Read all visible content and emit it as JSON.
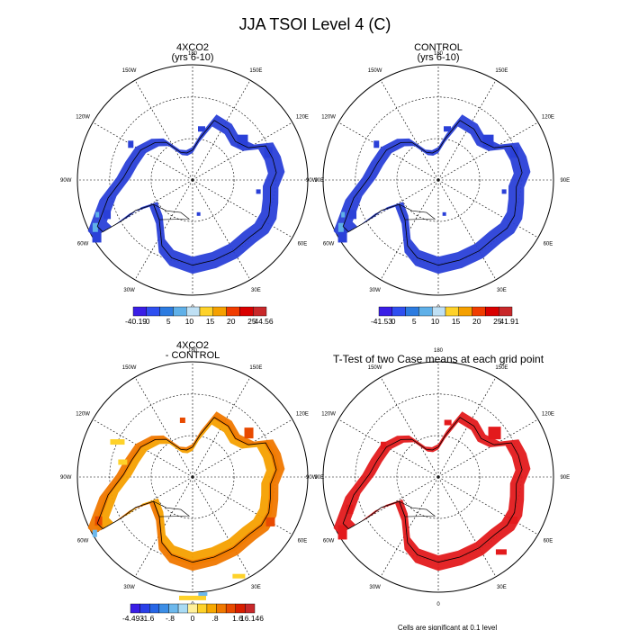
{
  "figure_title": "JJA TSOI Level 4 (C)",
  "colors": {
    "blue_field": "#3a1ee6",
    "ring_blue": "#2a40d8",
    "coast": "#000000",
    "sig_red": "#e31a1c"
  },
  "chart_data": [
    {
      "type": "heatmap",
      "projection": "south-polar-stereographic",
      "title_line1": "4XCO2",
      "title_line2": "(yrs 6-10)",
      "lon_labels": [
        "0",
        "30E",
        "60E",
        "90E",
        "120E",
        "150E",
        "180",
        "150W",
        "120W",
        "90W",
        "60W",
        "30W"
      ],
      "colorbar": {
        "colors": [
          "#3a1ee6",
          "#2f4ff0",
          "#2c7be0",
          "#5fb0e8",
          "#bfe0f4",
          "#fed22a",
          "#f5a000",
          "#f03c00",
          "#d90000",
          "#c8282a"
        ],
        "labels": [
          "-40.19",
          "0",
          "5",
          "10",
          "15",
          "20",
          "25",
          "44.56"
        ],
        "min": -40.19,
        "max": 44.56
      }
    },
    {
      "type": "heatmap",
      "projection": "south-polar-stereographic",
      "title_line1": "CONTROL",
      "title_line2": "(yrs 6-10)",
      "lon_labels": [
        "0",
        "30E",
        "60E",
        "90E",
        "120E",
        "150E",
        "180",
        "150W",
        "120W",
        "90W",
        "60W",
        "30W"
      ],
      "colorbar": {
        "colors": [
          "#3a1ee6",
          "#2f4ff0",
          "#2c7be0",
          "#5fb0e8",
          "#bfe0f4",
          "#fed22a",
          "#f5a000",
          "#f03c00",
          "#d90000",
          "#c8282a"
        ],
        "labels": [
          "-41.53",
          "0",
          "5",
          "10",
          "15",
          "20",
          "25",
          "41.91"
        ],
        "min": -41.53,
        "max": 41.91
      }
    },
    {
      "type": "heatmap",
      "projection": "south-polar-stereographic",
      "title_line1": "4XCO2",
      "title_line2": "- CONTROL",
      "lon_labels": [
        "0",
        "30E",
        "60E",
        "90E",
        "120E",
        "150E",
        "180",
        "150W",
        "120W",
        "90W",
        "60W",
        "30W"
      ],
      "colorbar": {
        "colors": [
          "#3a1ee6",
          "#2a3fe8",
          "#2766e6",
          "#3c8ee6",
          "#6cb8ec",
          "#a9dbf4",
          "#fff09a",
          "#fed22a",
          "#f7a800",
          "#f07800",
          "#e84a00",
          "#d81e00",
          "#c8282a"
        ],
        "labels": [
          "-4.493",
          "-1.6",
          "-.8",
          "0",
          ".8",
          "1.6",
          "16.146"
        ],
        "min": -4.493,
        "max": 16.146
      }
    },
    {
      "type": "heatmap",
      "projection": "south-polar-stereographic",
      "title_line1": "T-Test of two Case means at each grid point",
      "title_line2": "",
      "lon_labels": [
        "0",
        "30E",
        "60E",
        "90E",
        "120E",
        "150E",
        "180",
        "150W",
        "120W",
        "90W",
        "60W",
        "30W"
      ],
      "footnote": "Cells are significant at 0.1 level"
    }
  ]
}
